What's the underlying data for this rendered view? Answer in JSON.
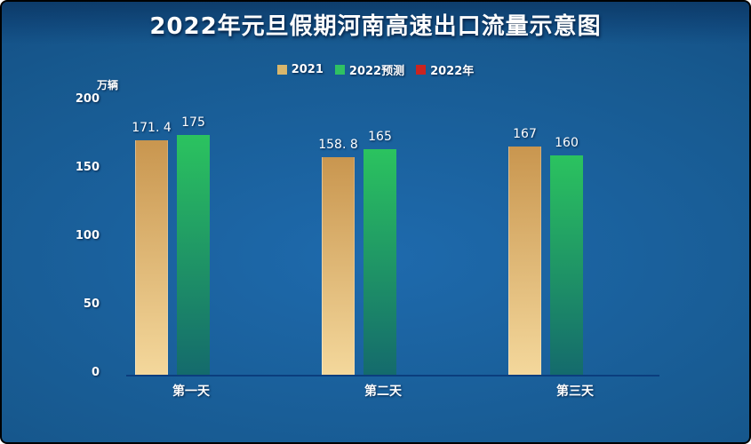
{
  "title": "2022年元旦假期河南高速出口流量示意图",
  "legend": {
    "items": [
      {
        "label": "2021",
        "color": "#d8b66c"
      },
      {
        "label": "2022预测",
        "color": "#2fc162"
      },
      {
        "label": "2022年",
        "color": "#cb2420"
      }
    ]
  },
  "y_axis": {
    "unit": "万辆",
    "ticks": [
      "200",
      "150",
      "100",
      "50",
      "0"
    ]
  },
  "x_axis": {
    "labels": [
      "第一天",
      "第二天",
      "第三天"
    ]
  },
  "colors": {
    "background_center": "#1e6aad",
    "background_edge": "#0f4378",
    "axis_line": "#0b3e7e",
    "text": "#ffffff"
  },
  "chart_data": {
    "type": "bar",
    "title": "2022年元旦假期河南高速出口流量示意图",
    "categories": [
      "第一天",
      "第二天",
      "第三天"
    ],
    "series": [
      {
        "name": "2021",
        "values": [
          171.4,
          158.8,
          167
        ],
        "value_labels": [
          "171. 4",
          "158. 8",
          "167"
        ],
        "color_top": "#c9964f",
        "color_bottom": "#f4d89c"
      },
      {
        "name": "2022预测",
        "values": [
          175,
          165,
          160
        ],
        "value_labels": [
          "175",
          "165",
          "160"
        ],
        "color_top": "#2bc35f",
        "color_bottom": "#146a6c"
      },
      {
        "name": "2022年",
        "values": [
          null,
          null,
          null
        ],
        "value_labels": [
          "",
          "",
          ""
        ],
        "color_top": "#cb2420",
        "color_bottom": "#cb2420"
      }
    ],
    "ylabel": "万辆",
    "ylim": [
      0,
      200
    ],
    "y_ticks": [
      0,
      50,
      100,
      150,
      200
    ],
    "grid": false,
    "legend_position": "top-center"
  }
}
